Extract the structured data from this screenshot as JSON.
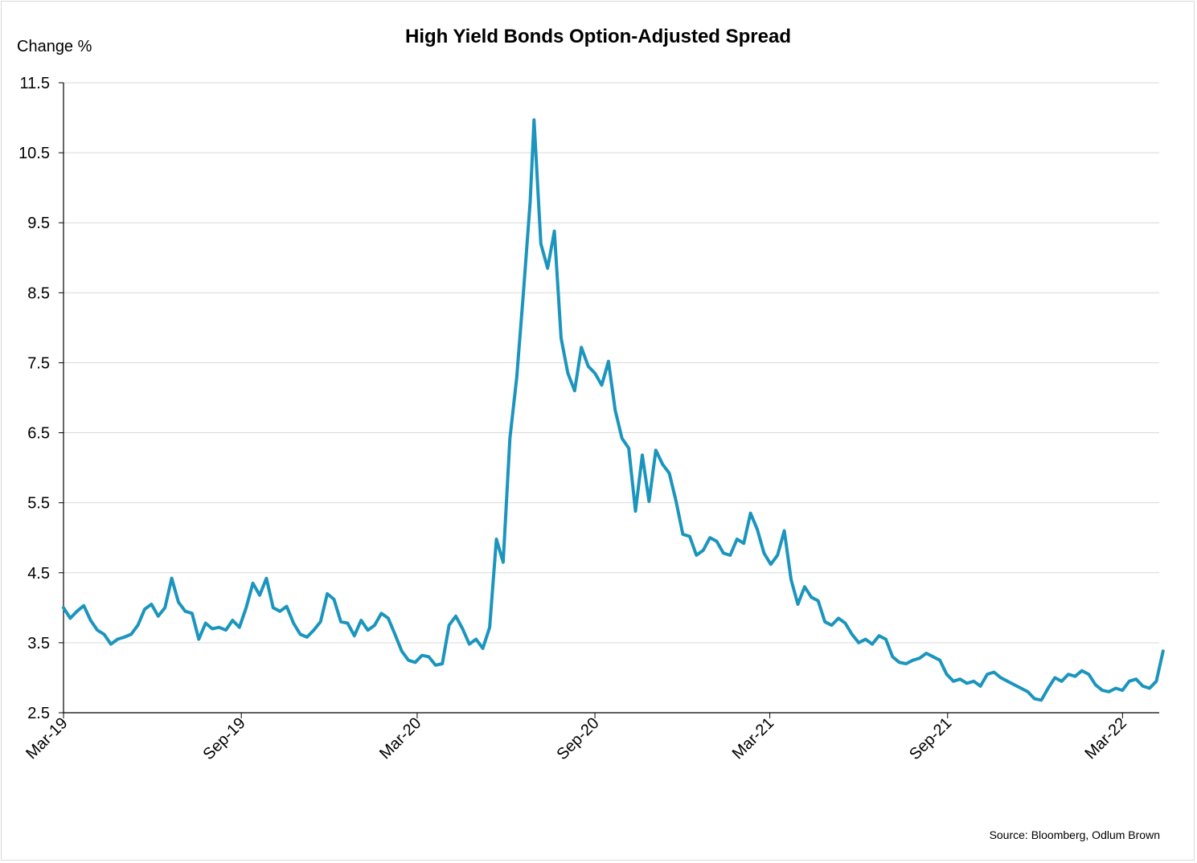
{
  "chart_data": {
    "type": "line",
    "title": "High Yield Bonds Option-Adjusted Spread",
    "ylabel": "Change %",
    "xlabel": "",
    "source": "Source: Bloomberg, Odlum Brown",
    "ylim": [
      2.5,
      11.5
    ],
    "yticks": [
      2.5,
      3.5,
      4.5,
      5.5,
      6.5,
      7.5,
      8.5,
      9.5,
      10.5,
      11.5
    ],
    "ytick_labels": [
      "2.5",
      "3.5",
      "4.5",
      "5.5",
      "6.5",
      "7.5",
      "8.5",
      "9.5",
      "10.5",
      "11.5"
    ],
    "xticks": [
      "2019-03-01",
      "2019-09-01",
      "2020-03-01",
      "2020-09-01",
      "2021-03-01",
      "2021-09-01",
      "2022-03-01"
    ],
    "xtick_labels": [
      "Mar-19",
      "Sep-19",
      "Mar-20",
      "Sep-20",
      "Mar-21",
      "Sep-21",
      "Mar-22"
    ],
    "xlim": [
      "2019-03-01",
      "2022-04-08"
    ],
    "grid": "horizontal",
    "line_color": "#1b95bd",
    "series": [
      {
        "points": [
          [
            "2019-03-01",
            4.0
          ],
          [
            "2019-03-08",
            3.85
          ],
          [
            "2019-03-15",
            3.95
          ],
          [
            "2019-03-22",
            4.03
          ],
          [
            "2019-03-29",
            3.82
          ],
          [
            "2019-04-05",
            3.68
          ],
          [
            "2019-04-12",
            3.62
          ],
          [
            "2019-04-19",
            3.48
          ],
          [
            "2019-04-26",
            3.55
          ],
          [
            "2019-05-03",
            3.58
          ],
          [
            "2019-05-10",
            3.62
          ],
          [
            "2019-05-17",
            3.75
          ],
          [
            "2019-05-24",
            3.98
          ],
          [
            "2019-05-31",
            4.05
          ],
          [
            "2019-06-07",
            3.88
          ],
          [
            "2019-06-14",
            4.0
          ],
          [
            "2019-06-21",
            4.42
          ],
          [
            "2019-06-28",
            4.08
          ],
          [
            "2019-07-05",
            3.95
          ],
          [
            "2019-07-12",
            3.92
          ],
          [
            "2019-07-19",
            3.55
          ],
          [
            "2019-07-26",
            3.78
          ],
          [
            "2019-08-02",
            3.7
          ],
          [
            "2019-08-09",
            3.72
          ],
          [
            "2019-08-16",
            3.68
          ],
          [
            "2019-08-23",
            3.82
          ],
          [
            "2019-08-30",
            3.72
          ],
          [
            "2019-09-06",
            4.0
          ],
          [
            "2019-09-13",
            4.35
          ],
          [
            "2019-09-20",
            4.18
          ],
          [
            "2019-09-27",
            4.42
          ],
          [
            "2019-10-04",
            4.0
          ],
          [
            "2019-10-11",
            3.95
          ],
          [
            "2019-10-18",
            4.02
          ],
          [
            "2019-10-25",
            3.78
          ],
          [
            "2019-11-01",
            3.62
          ],
          [
            "2019-11-08",
            3.58
          ],
          [
            "2019-11-15",
            3.68
          ],
          [
            "2019-11-22",
            3.8
          ],
          [
            "2019-11-29",
            4.2
          ],
          [
            "2019-12-06",
            4.12
          ],
          [
            "2019-12-13",
            3.8
          ],
          [
            "2019-12-20",
            3.78
          ],
          [
            "2019-12-27",
            3.6
          ],
          [
            "2020-01-03",
            3.82
          ],
          [
            "2020-01-10",
            3.68
          ],
          [
            "2020-01-17",
            3.75
          ],
          [
            "2020-01-24",
            3.92
          ],
          [
            "2020-01-31",
            3.85
          ],
          [
            "2020-02-07",
            3.62
          ],
          [
            "2020-02-14",
            3.38
          ],
          [
            "2020-02-21",
            3.25
          ],
          [
            "2020-02-28",
            3.22
          ],
          [
            "2020-03-06",
            3.32
          ],
          [
            "2020-03-13",
            3.3
          ],
          [
            "2020-03-20",
            3.18
          ],
          [
            "2020-03-27",
            3.2
          ],
          [
            "2020-04-03",
            3.75
          ],
          [
            "2020-04-10",
            3.88
          ],
          [
            "2020-04-17",
            3.7
          ],
          [
            "2020-04-24",
            3.48
          ],
          [
            "2020-05-01",
            3.55
          ],
          [
            "2020-05-08",
            3.42
          ],
          [
            "2020-05-15",
            3.72
          ],
          [
            "2020-05-22",
            4.98
          ],
          [
            "2020-05-29",
            4.65
          ],
          [
            "2020-06-05",
            6.42
          ],
          [
            "2020-06-12",
            7.28
          ],
          [
            "2020-06-19",
            8.5
          ],
          [
            "2020-06-26",
            9.8
          ],
          [
            "2020-06-30",
            10.97
          ],
          [
            "2020-07-07",
            9.2
          ],
          [
            "2020-07-14",
            8.85
          ],
          [
            "2020-07-21",
            9.38
          ],
          [
            "2020-07-28",
            7.85
          ],
          [
            "2020-08-04",
            7.35
          ],
          [
            "2020-08-11",
            7.1
          ],
          [
            "2020-08-18",
            7.72
          ],
          [
            "2020-08-25",
            7.45
          ],
          [
            "2020-09-01",
            7.35
          ],
          [
            "2020-09-08",
            7.18
          ],
          [
            "2020-09-15",
            7.52
          ],
          [
            "2020-09-22",
            6.82
          ],
          [
            "2020-09-29",
            6.42
          ],
          [
            "2020-10-06",
            6.28
          ],
          [
            "2020-10-13",
            5.38
          ],
          [
            "2020-10-20",
            6.18
          ],
          [
            "2020-10-27",
            5.52
          ],
          [
            "2020-11-03",
            6.25
          ],
          [
            "2020-11-10",
            6.05
          ],
          [
            "2020-11-17",
            5.92
          ],
          [
            "2020-11-24",
            5.52
          ],
          [
            "2020-12-01",
            5.05
          ],
          [
            "2020-12-08",
            5.02
          ],
          [
            "2020-12-15",
            4.75
          ],
          [
            "2020-12-22",
            4.82
          ],
          [
            "2020-12-29",
            5.0
          ],
          [
            "2021-01-05",
            4.95
          ],
          [
            "2021-01-12",
            4.78
          ],
          [
            "2021-01-19",
            4.75
          ],
          [
            "2021-01-26",
            4.98
          ],
          [
            "2021-02-02",
            4.92
          ],
          [
            "2021-02-09",
            5.35
          ],
          [
            "2021-02-16",
            5.12
          ],
          [
            "2021-02-23",
            4.78
          ],
          [
            "2021-03-02",
            4.62
          ],
          [
            "2021-03-09",
            4.75
          ],
          [
            "2021-03-16",
            5.1
          ],
          [
            "2021-03-23",
            4.4
          ],
          [
            "2021-03-30",
            4.05
          ],
          [
            "2021-04-06",
            4.3
          ],
          [
            "2021-04-13",
            4.15
          ],
          [
            "2021-04-20",
            4.1
          ],
          [
            "2021-04-27",
            3.8
          ],
          [
            "2021-05-04",
            3.75
          ],
          [
            "2021-05-11",
            3.85
          ],
          [
            "2021-05-18",
            3.78
          ],
          [
            "2021-05-25",
            3.62
          ],
          [
            "2021-06-01",
            3.5
          ],
          [
            "2021-06-08",
            3.55
          ],
          [
            "2021-06-15",
            3.48
          ],
          [
            "2021-06-22",
            3.6
          ],
          [
            "2021-06-29",
            3.55
          ],
          [
            "2021-07-06",
            3.3
          ],
          [
            "2021-07-13",
            3.22
          ],
          [
            "2021-07-20",
            3.2
          ],
          [
            "2021-07-27",
            3.25
          ],
          [
            "2021-08-03",
            3.28
          ],
          [
            "2021-08-10",
            3.35
          ],
          [
            "2021-08-17",
            3.3
          ],
          [
            "2021-08-24",
            3.25
          ],
          [
            "2021-08-31",
            3.05
          ],
          [
            "2021-09-07",
            2.95
          ],
          [
            "2021-09-14",
            2.98
          ],
          [
            "2021-09-21",
            2.92
          ],
          [
            "2021-09-28",
            2.95
          ],
          [
            "2021-10-05",
            2.88
          ],
          [
            "2021-10-12",
            3.05
          ],
          [
            "2021-10-19",
            3.08
          ],
          [
            "2021-10-26",
            3.0
          ],
          [
            "2021-11-02",
            2.95
          ],
          [
            "2021-11-09",
            2.9
          ],
          [
            "2021-11-16",
            2.85
          ],
          [
            "2021-11-23",
            2.8
          ],
          [
            "2021-11-30",
            2.7
          ],
          [
            "2021-12-07",
            2.68
          ],
          [
            "2021-12-14",
            2.85
          ],
          [
            "2021-12-21",
            3.0
          ],
          [
            "2021-12-28",
            2.95
          ],
          [
            "2022-01-04",
            3.05
          ],
          [
            "2022-01-11",
            3.02
          ],
          [
            "2022-01-18",
            3.1
          ],
          [
            "2022-01-25",
            3.05
          ],
          [
            "2022-02-01",
            2.9
          ],
          [
            "2022-02-08",
            2.82
          ],
          [
            "2022-02-15",
            2.8
          ],
          [
            "2022-02-22",
            2.85
          ],
          [
            "2022-03-01",
            2.82
          ],
          [
            "2022-03-08",
            2.95
          ],
          [
            "2022-03-15",
            2.98
          ],
          [
            "2022-03-22",
            2.88
          ],
          [
            "2022-03-29",
            2.85
          ],
          [
            "2022-04-05",
            2.95
          ],
          [
            "2022-04-12",
            3.38
          ]
        ]
      }
    ]
  }
}
